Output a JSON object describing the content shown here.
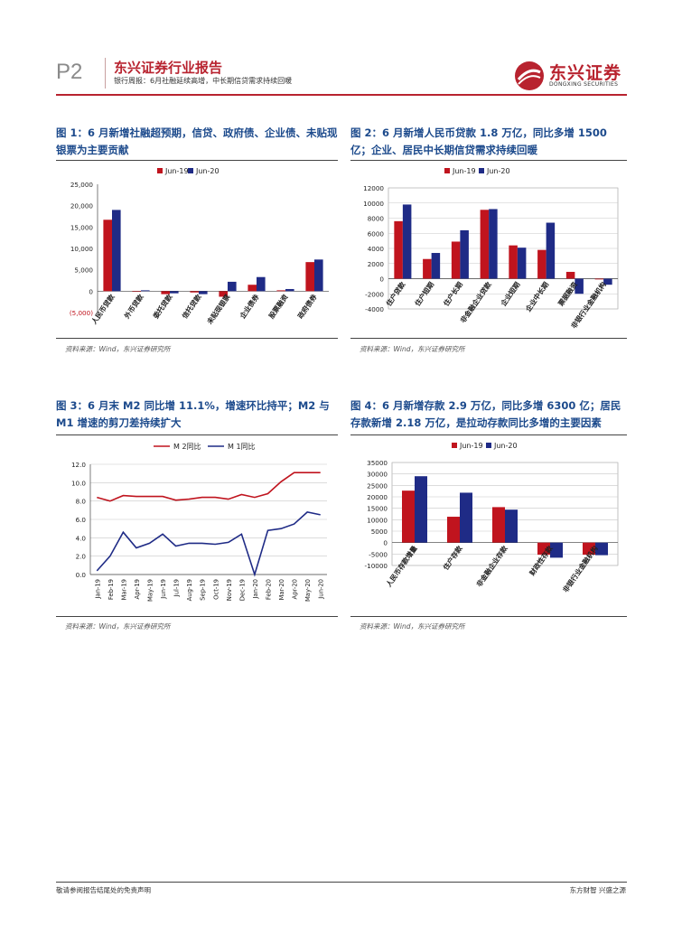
{
  "header": {
    "page": "P2",
    "title": "东兴证券行业报告",
    "subtitle": "银行周报：6月社融延续高增，中长期信贷需求持续回暖",
    "logo_cn": "东兴证券",
    "logo_en": "DONGXING SECURITIES"
  },
  "colors": {
    "red": "#c0141e",
    "blue": "#1f2b86",
    "brand": "#b8232f"
  },
  "figures": [
    {
      "title": "图 1：6 月新增社融超预期，信贷、政府债、企业债、未贴现银票为主要贡献",
      "source": "资料来源：Wind，东兴证券研究所"
    },
    {
      "title": "图 2：6 月新增人民币贷款 1.8 万亿，同比多增 1500 亿；企业、居民中长期信贷需求持续回暖",
      "source": "资料来源：Wind，东兴证券研究所"
    },
    {
      "title": "图 3：6 月末 M2 同比增 11.1%，增速环比持平；M2 与 M1 增速的剪刀差持续扩大",
      "source": "资料来源：Wind，东兴证券研究所"
    },
    {
      "title": "图 4：6 月新增存款 2.9 万亿，同比多增 6300 亿；居民存款新增 2.18 万亿，是拉动存款同比多增的主要因素",
      "source": "资料来源：Wind，东兴证券研究所"
    }
  ],
  "chart_data": [
    {
      "type": "bar",
      "categories": [
        "人民币贷款",
        "外币贷款",
        "委托贷款",
        "信托贷款",
        "未贴现银票",
        "企业债券",
        "股票融资",
        "政府债券"
      ],
      "series": [
        {
          "name": "Jun-19",
          "values": [
            16700,
            0,
            -700,
            -300,
            -1300,
            1500,
            200,
            6800
          ]
        },
        {
          "name": "Jun-20",
          "values": [
            19000,
            200,
            -500,
            -700,
            2200,
            3300,
            500,
            7400
          ]
        }
      ],
      "ylim": [
        -5000,
        25000
      ],
      "yticks": [
        "(5,000)",
        "0",
        "5,000",
        "10,000",
        "15,000",
        "20,000",
        "25,000"
      ],
      "ytick_values": [
        -5000,
        0,
        5000,
        10000,
        15000,
        20000,
        25000
      ],
      "legend": "top-center"
    },
    {
      "type": "bar",
      "categories": [
        "住户贷款",
        "住户短期",
        "住户长期",
        "非金融企业贷款",
        "企业短期",
        "企业中长期",
        "票据融资",
        "非银行业金融机构"
      ],
      "series": [
        {
          "name": "Jun-19",
          "values": [
            7600,
            2600,
            4900,
            9100,
            4400,
            3800,
            900,
            -100
          ]
        },
        {
          "name": "Jun-20",
          "values": [
            9800,
            3400,
            6400,
            9200,
            4100,
            7400,
            -2000,
            -800
          ]
        }
      ],
      "ylim": [
        -4000,
        12000
      ],
      "yticks": [
        "-4000",
        "-2000",
        "0",
        "2000",
        "4000",
        "6000",
        "8000",
        "10000",
        "12000"
      ],
      "ytick_values": [
        -4000,
        -2000,
        0,
        2000,
        4000,
        6000,
        8000,
        10000,
        12000
      ],
      "legend": "top-left"
    },
    {
      "type": "line",
      "categories": [
        "Jan-19",
        "Feb-19",
        "Mar-19",
        "Apr-19",
        "May-19",
        "Jun-19",
        "Jul-19",
        "Aug-19",
        "Sep-19",
        "Oct-19",
        "Nov-19",
        "Dec-19",
        "Jan-20",
        "Feb-20",
        "Mar-20",
        "Apr-20",
        "May-20",
        "Jun-20"
      ],
      "xticks": [
        "Jan-19",
        "Feb-19",
        "Mar-19",
        "Apr-19",
        "May-19",
        "Jun-19",
        "Jul-19",
        "Aug-19",
        "Sep-19",
        "Oct-19",
        "Nov-19",
        "Dec-19",
        "Jan-20",
        "Feb-20",
        "Mar-20",
        "Apr-20",
        "May-20",
        "Jun-20"
      ],
      "series": [
        {
          "name": "M 2同比",
          "values": [
            8.4,
            8.0,
            8.6,
            8.5,
            8.5,
            8.5,
            8.1,
            8.2,
            8.4,
            8.4,
            8.2,
            8.7,
            8.4,
            8.8,
            10.1,
            11.1,
            11.1,
            11.1
          ]
        },
        {
          "name": "M 1同比",
          "values": [
            0.4,
            2.0,
            4.6,
            2.9,
            3.4,
            4.4,
            3.1,
            3.4,
            3.4,
            3.3,
            3.5,
            4.4,
            0.0,
            4.8,
            5.0,
            5.5,
            6.8,
            6.5
          ]
        }
      ],
      "ylim": [
        0,
        12
      ],
      "yticks": [
        "0.0",
        "2.0",
        "4.0",
        "6.0",
        "8.0",
        "10.0",
        "12.0"
      ],
      "ytick_values": [
        0,
        2,
        4,
        6,
        8,
        10,
        12
      ],
      "legend": "top-center"
    },
    {
      "type": "bar",
      "categories": [
        "人民币存款增量",
        "住户存款",
        "非金融企业存款",
        "财政性存款",
        "非银行业金融机构"
      ],
      "series": [
        {
          "name": "Jun-19",
          "values": [
            22700,
            11300,
            15500,
            -5300,
            -5300
          ]
        },
        {
          "name": "Jun-20",
          "values": [
            29000,
            21800,
            14400,
            -6600,
            -5500
          ]
        }
      ],
      "ylim": [
        -10000,
        35000
      ],
      "yticks": [
        "-10000",
        "-5000",
        "0",
        "5000",
        "10000",
        "15000",
        "20000",
        "25000",
        "30000",
        "35000"
      ],
      "ytick_values": [
        -10000,
        -5000,
        0,
        5000,
        10000,
        15000,
        20000,
        25000,
        30000,
        35000
      ],
      "legend": "top-left"
    }
  ],
  "footer": {
    "left": "敬请参阅报告结尾处的免责声明",
    "right": "东方财智  兴盛之源"
  }
}
